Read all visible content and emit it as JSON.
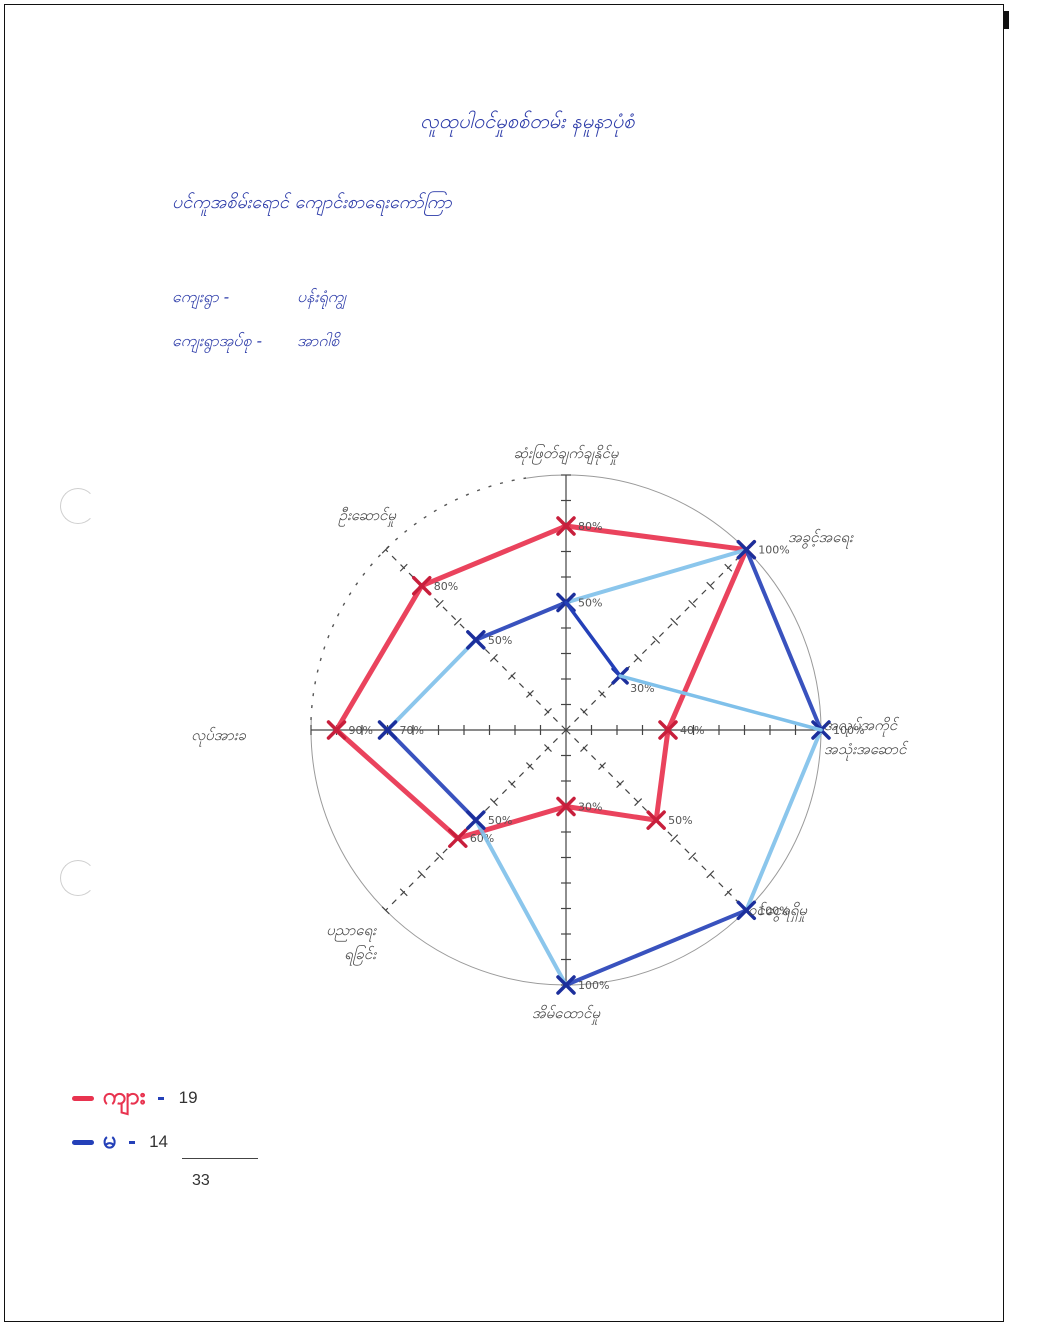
{
  "document": {
    "title": "လူထုပါဝင်မှုစစ်တမ်း နမူနာပုံစံ",
    "subtitle": "ပင်ကူအစိမ်းရောင် ကျောင်းစာရေးကော်ကြာ",
    "meta": [
      {
        "label": "ကျေးရွာ -",
        "value": "ပန်းရုံကျွ"
      },
      {
        "label": "ကျေးရွာအုပ်စု -",
        "value": "အာဂါစိ"
      }
    ]
  },
  "chart_data": {
    "type": "radar",
    "categories": [
      "ဆုံးဖြတ်ချက်ချနိုင်မှု",
      "အခွင့်အရေး",
      "အလုပ်အကိုင် အသုံးအဆောင်",
      "ဝင်ငွေရရှိမှု",
      "အိမ်ထောင်မှု",
      "ပညာရေး ရခြင်း",
      "လုပ်အားခ",
      "ဦးဆောင်မှု"
    ],
    "series": [
      {
        "name": "ကျား",
        "color": "#e8334f",
        "values": [
          80,
          100,
          40,
          50,
          30,
          60,
          90,
          80
        ]
      },
      {
        "name": "မ",
        "color": "#2440b8",
        "values": [
          50,
          100,
          100,
          100,
          100,
          50,
          70,
          50
        ]
      }
    ],
    "point_labels": {
      "ကျား": [
        "80%",
        "",
        "40%",
        "50%",
        "30%",
        "60%",
        "90%",
        "80%"
      ],
      "မ": [
        "50%",
        "100%",
        "100%",
        "100%",
        "100%",
        "50%",
        "70%",
        "50%"
      ]
    },
    "extra_marker": {
      "category_index": 1,
      "value": 30,
      "label": "30%"
    },
    "rlim": [
      0,
      100
    ]
  },
  "legend": {
    "items": [
      {
        "name": "ကျား",
        "count": "19",
        "color": "#e8334f"
      },
      {
        "name": "မ",
        "count": "14",
        "color": "#2440b8"
      }
    ],
    "total": "33"
  }
}
